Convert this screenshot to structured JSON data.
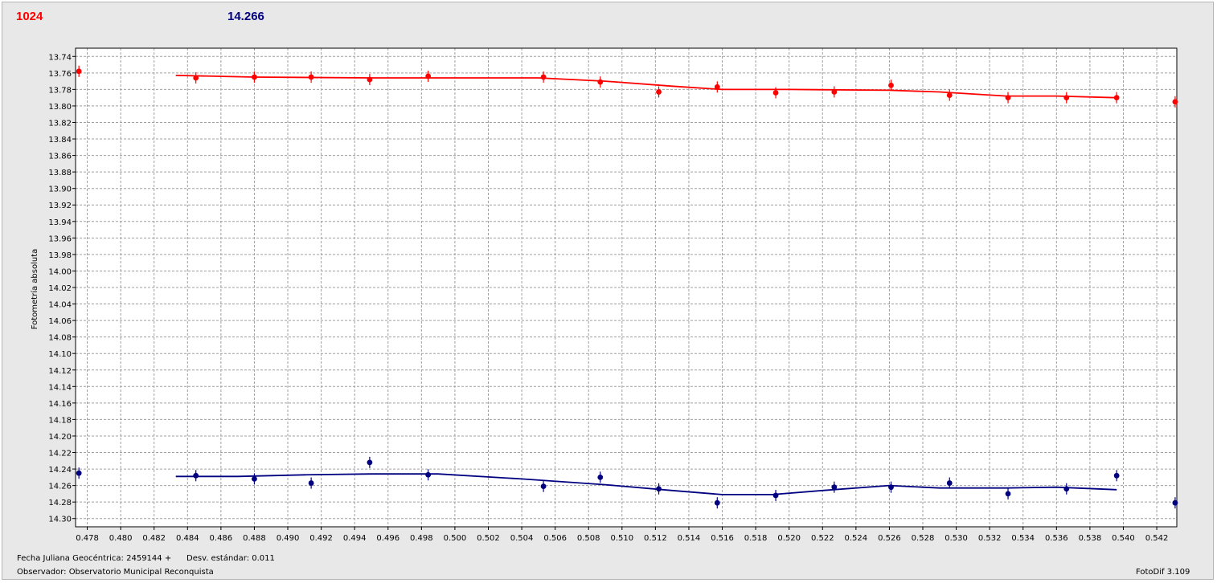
{
  "header": {
    "left_value": "1024",
    "left_color": "#ff0000",
    "right_value": "14.266",
    "right_color": "#000080"
  },
  "footer": {
    "jd_label": "Fecha Juliana Geocéntrica: 2459144 +",
    "std_label": "Desv. estándar: 0.011",
    "observer_label": "Observador: Observatorio Municipal Reconquista",
    "version_label": "FotoDif 3.109"
  },
  "chart_data": {
    "type": "scatter",
    "ylabel": "Fotometría absoluta",
    "xlim": [
      0.4773,
      0.5432
    ],
    "ylim": [
      13.73,
      14.31
    ],
    "y_inverted": true,
    "grid": true,
    "x_ticks": [
      "0.478",
      "0.480",
      "0.482",
      "0.484",
      "0.486",
      "0.488",
      "0.490",
      "0.492",
      "0.494",
      "0.496",
      "0.498",
      "0.500",
      "0.502",
      "0.504",
      "0.506",
      "0.508",
      "0.510",
      "0.512",
      "0.514",
      "0.516",
      "0.518",
      "0.520",
      "0.522",
      "0.524",
      "0.526",
      "0.528",
      "0.530",
      "0.532",
      "0.534",
      "0.536",
      "0.538",
      "0.540",
      "0.542"
    ],
    "y_ticks": [
      "13.74",
      "13.76",
      "13.78",
      "13.80",
      "13.82",
      "13.84",
      "13.86",
      "13.88",
      "13.90",
      "13.92",
      "13.94",
      "13.96",
      "13.98",
      "14.00",
      "14.02",
      "14.04",
      "14.06",
      "14.08",
      "14.10",
      "14.12",
      "14.14",
      "14.16",
      "14.18",
      "14.20",
      "14.22",
      "14.24",
      "14.26",
      "14.28",
      "14.30"
    ],
    "series": [
      {
        "color": "#ff0000",
        "points": [
          [
            0.4775,
            13.758
          ],
          [
            0.4845,
            13.766
          ],
          [
            0.488,
            13.765
          ],
          [
            0.4914,
            13.765
          ],
          [
            0.4949,
            13.768
          ],
          [
            0.4984,
            13.764
          ],
          [
            0.5053,
            13.765
          ],
          [
            0.5087,
            13.771
          ],
          [
            0.5122,
            13.783
          ],
          [
            0.5157,
            13.777
          ],
          [
            0.5192,
            13.784
          ],
          [
            0.5227,
            13.783
          ],
          [
            0.5261,
            13.775
          ],
          [
            0.5296,
            13.787
          ],
          [
            0.5331,
            13.79
          ],
          [
            0.5366,
            13.79
          ],
          [
            0.5396,
            13.79
          ],
          [
            0.5431,
            13.795
          ]
        ],
        "fit": [
          [
            0.4833,
            13.763
          ],
          [
            0.488,
            13.765
          ],
          [
            0.495,
            13.766
          ],
          [
            0.501,
            13.766
          ],
          [
            0.505,
            13.766
          ],
          [
            0.509,
            13.77
          ],
          [
            0.513,
            13.776
          ],
          [
            0.516,
            13.78
          ],
          [
            0.52,
            13.78
          ],
          [
            0.526,
            13.781
          ],
          [
            0.529,
            13.783
          ],
          [
            0.533,
            13.788
          ],
          [
            0.536,
            13.788
          ],
          [
            0.5396,
            13.79
          ]
        ]
      },
      {
        "color": "#000080",
        "points": [
          [
            0.4775,
            14.245
          ],
          [
            0.4845,
            14.248
          ],
          [
            0.488,
            14.252
          ],
          [
            0.4914,
            14.257
          ],
          [
            0.4949,
            14.232
          ],
          [
            0.4984,
            14.247
          ],
          [
            0.5053,
            14.261
          ],
          [
            0.5087,
            14.25
          ],
          [
            0.5122,
            14.264
          ],
          [
            0.5157,
            14.281
          ],
          [
            0.5192,
            14.272
          ],
          [
            0.5227,
            14.262
          ],
          [
            0.5261,
            14.262
          ],
          [
            0.5296,
            14.257
          ],
          [
            0.5331,
            14.27
          ],
          [
            0.5366,
            14.264
          ],
          [
            0.5396,
            14.248
          ],
          [
            0.5431,
            14.281
          ]
        ],
        "fit": [
          [
            0.4833,
            14.249
          ],
          [
            0.487,
            14.249
          ],
          [
            0.491,
            14.247
          ],
          [
            0.495,
            14.246
          ],
          [
            0.499,
            14.246
          ],
          [
            0.504,
            14.252
          ],
          [
            0.509,
            14.259
          ],
          [
            0.513,
            14.266
          ],
          [
            0.516,
            14.271
          ],
          [
            0.519,
            14.271
          ],
          [
            0.522,
            14.266
          ],
          [
            0.526,
            14.26
          ],
          [
            0.529,
            14.263
          ],
          [
            0.533,
            14.263
          ],
          [
            0.536,
            14.262
          ],
          [
            0.5396,
            14.265
          ]
        ]
      }
    ]
  }
}
